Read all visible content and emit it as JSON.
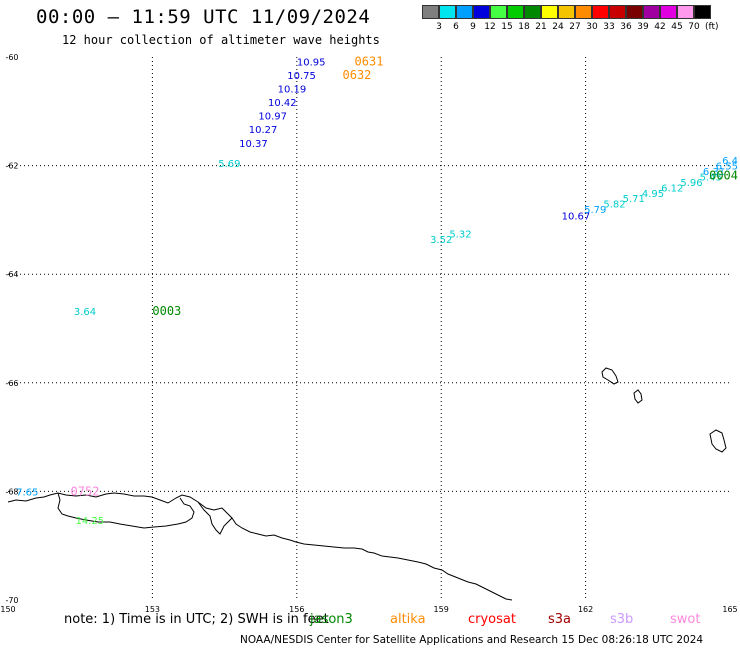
{
  "header": {
    "title": "00:00 – 11:59 UTC 11/09/2024",
    "subtitle": "12 hour collection of altimeter wave heights"
  },
  "legend": {
    "unit_label": "(ft)",
    "bins": [
      {
        "label": "3",
        "color": "#7f7f7f"
      },
      {
        "label": "6",
        "color": "#00e5ee"
      },
      {
        "label": "9",
        "color": "#00a0ff"
      },
      {
        "label": "12",
        "color": "#0000dd"
      },
      {
        "label": "15",
        "color": "#44ff44"
      },
      {
        "label": "18",
        "color": "#00cc00"
      },
      {
        "label": "21",
        "color": "#008800"
      },
      {
        "label": "24",
        "color": "#ffff00"
      },
      {
        "label": "27",
        "color": "#f5c400"
      },
      {
        "label": "30",
        "color": "#ff8c00"
      },
      {
        "label": "33",
        "color": "#ff0000"
      },
      {
        "label": "36",
        "color": "#c80000"
      },
      {
        "label": "39",
        "color": "#7a0000"
      },
      {
        "label": "42",
        "color": "#a000a0"
      },
      {
        "label": "45",
        "color": "#e000e0"
      },
      {
        "label": "70",
        "color": "#ff99ee"
      },
      {
        "label": "",
        "color": "#000000"
      }
    ]
  },
  "map": {
    "lon_ticks": [
      "150",
      "153",
      "156",
      "159",
      "162",
      "165"
    ],
    "lat_ticks": [
      "-60",
      "-62",
      "-64",
      "-66",
      "-68",
      "-70"
    ],
    "observations": [
      {
        "lon": 156.3,
        "lat": -60.08,
        "text": "10.95",
        "color": "#0000dd"
      },
      {
        "lon": 156.1,
        "lat": -60.33,
        "text": "10.75",
        "color": "#0000dd"
      },
      {
        "lon": 155.9,
        "lat": -60.58,
        "text": "10.19",
        "color": "#0000dd"
      },
      {
        "lon": 155.7,
        "lat": -60.83,
        "text": "10.42",
        "color": "#0000dd"
      },
      {
        "lon": 155.5,
        "lat": -61.08,
        "text": "10.97",
        "color": "#0000dd"
      },
      {
        "lon": 155.3,
        "lat": -61.33,
        "text": "10.27",
        "color": "#0000dd"
      },
      {
        "lon": 155.1,
        "lat": -61.58,
        "text": "10.37",
        "color": "#0000dd"
      },
      {
        "lon": 154.6,
        "lat": -61.95,
        "text": "5.69",
        "color": "#00cccc"
      },
      {
        "lon": 159.0,
        "lat": -63.35,
        "text": "3.52",
        "color": "#00cccc"
      },
      {
        "lon": 159.4,
        "lat": -63.25,
        "text": "5.32",
        "color": "#00cccc"
      },
      {
        "lon": 161.8,
        "lat": -62.92,
        "text": "10.67",
        "color": "#0000dd"
      },
      {
        "lon": 162.2,
        "lat": -62.8,
        "text": "5.79",
        "color": "#00a0ff"
      },
      {
        "lon": 162.6,
        "lat": -62.7,
        "text": "5.82",
        "color": "#00cccc"
      },
      {
        "lon": 163.0,
        "lat": -62.6,
        "text": "5.71",
        "color": "#00cccc"
      },
      {
        "lon": 163.4,
        "lat": -62.5,
        "text": "4.95",
        "color": "#00cccc"
      },
      {
        "lon": 163.8,
        "lat": -62.4,
        "text": "6.12",
        "color": "#00cccc"
      },
      {
        "lon": 164.2,
        "lat": -62.3,
        "text": "5.96",
        "color": "#00cccc"
      },
      {
        "lon": 164.6,
        "lat": -62.2,
        "text": "5.45",
        "color": "#00cccc"
      },
      {
        "lon": 164.9,
        "lat": -62.1,
        "text": "6.31",
        "color": "#00a0ff"
      },
      {
        "lon": 165.2,
        "lat": -62.0,
        "text": "6.55",
        "color": "#00a0ff"
      },
      {
        "lon": 165.5,
        "lat": -61.9,
        "text": "6.4",
        "color": "#00a0ff"
      },
      {
        "lon": 151.6,
        "lat": -64.68,
        "text": "3.64",
        "color": "#00cccc"
      },
      {
        "lon": 150.4,
        "lat": -68.0,
        "text": "7.65",
        "color": "#00a0ff"
      },
      {
        "lon": 151.7,
        "lat": -68.53,
        "text": "14.25",
        "color": "#44ff44"
      }
    ],
    "passes": [
      {
        "lon": 157.5,
        "lat": -60.08,
        "text": "0631",
        "color": "#ff8c00"
      },
      {
        "lon": 157.25,
        "lat": -60.33,
        "text": "0632",
        "color": "#ff8c00"
      },
      {
        "lon": 165.8,
        "lat": -62.18,
        "text": "0004",
        "color": "#008800"
      },
      {
        "lon": 153.3,
        "lat": -64.68,
        "text": "0003",
        "color": "#008800"
      },
      {
        "lon": 151.6,
        "lat": -68.0,
        "text": "0752",
        "color": "#ff88dd"
      }
    ]
  },
  "footer": {
    "note": "note: 1) Time is in UTC; 2) SWH is in feet",
    "missions": [
      {
        "name": "jason3",
        "color": "#008800"
      },
      {
        "name": "altika",
        "color": "#ff8c00"
      },
      {
        "name": "cryosat",
        "color": "#ff0000"
      },
      {
        "name": "s3a",
        "color": "#a00000"
      },
      {
        "name": "s3b",
        "color": "#cc99ff"
      },
      {
        "name": "swot",
        "color": "#ff88dd"
      }
    ],
    "credit": "NOAA/NESDIS Center for Satellite Applications and Research   15 Dec 08:26:18 UTC 2024"
  }
}
